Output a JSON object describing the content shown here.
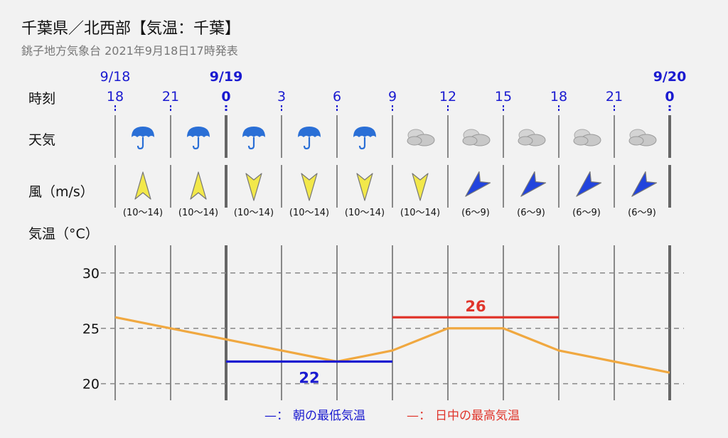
{
  "header": {
    "title": "千葉県／北西部【気温：千葉】",
    "subtitle": "銚子地方気象台 2021年9月18日17時発表"
  },
  "row_labels": {
    "time": "時刻",
    "weather": "天気",
    "wind": "風（m/s）",
    "temp": "気温（°C）"
  },
  "timeline": {
    "hours": [
      "18",
      "21",
      "0",
      "3",
      "6",
      "9",
      "12",
      "15",
      "18",
      "21",
      "0"
    ],
    "bold": [
      false,
      false,
      true,
      false,
      false,
      false,
      false,
      false,
      false,
      false,
      true
    ],
    "dates": [
      {
        "index": 0,
        "label": "9/18",
        "bold": false
      },
      {
        "index": 2,
        "label": "9/19",
        "bold": true
      },
      {
        "index": 10,
        "label": "9/20",
        "bold": true
      }
    ]
  },
  "weather": [
    "rain",
    "rain",
    "rain",
    "rain",
    "rain",
    "cloudy",
    "cloudy",
    "cloudy",
    "cloudy",
    "cloudy"
  ],
  "wind": [
    {
      "dir": "S",
      "speed": "(10〜14)",
      "color": "yellow"
    },
    {
      "dir": "S",
      "speed": "(10〜14)",
      "color": "yellow"
    },
    {
      "dir": "N",
      "speed": "(10〜14)",
      "color": "yellow"
    },
    {
      "dir": "N",
      "speed": "(10〜14)",
      "color": "yellow"
    },
    {
      "dir": "N",
      "speed": "(10〜14)",
      "color": "yellow"
    },
    {
      "dir": "N",
      "speed": "(10〜14)",
      "color": "yellow"
    },
    {
      "dir": "NE",
      "speed": "(6〜9)",
      "color": "blue"
    },
    {
      "dir": "NE",
      "speed": "(6〜9)",
      "color": "blue"
    },
    {
      "dir": "NE",
      "speed": "(6〜9)",
      "color": "blue"
    },
    {
      "dir": "NE",
      "speed": "(6〜9)",
      "color": "blue"
    }
  ],
  "chart_data": {
    "type": "line",
    "x": [
      "18",
      "21",
      "0",
      "3",
      "6",
      "9",
      "12",
      "15",
      "18",
      "21",
      "0"
    ],
    "series": [
      {
        "values": [
          26,
          25,
          24,
          23,
          22,
          23,
          25,
          25,
          23,
          22,
          21
        ],
        "color": "#f0a840"
      }
    ],
    "min_line": {
      "value": 22,
      "label": "22",
      "from_index": 2,
      "to_index": 5,
      "color": "#1a1ad0"
    },
    "max_line": {
      "value": 26,
      "label": "26",
      "from_index": 5,
      "to_index": 8,
      "color": "#e0352b"
    },
    "yticks": [
      20,
      25,
      30
    ],
    "ylim": [
      18.5,
      32.5
    ],
    "grid": true,
    "legend": [
      {
        "mark": "—：",
        "text": "朝の最低気温",
        "color": "#1a1ad0"
      },
      {
        "mark": "—：",
        "text": "日中の最高気温",
        "color": "#e0352b"
      }
    ]
  },
  "colors": {
    "blue": "#1a1ad0",
    "red": "#e0352b",
    "orange": "#f0a840",
    "wind_yellow": "#f2e84a",
    "wind_blue": "#2244dd",
    "umbrella": "#2a6fd6",
    "cloud": "#c8c8c8"
  }
}
